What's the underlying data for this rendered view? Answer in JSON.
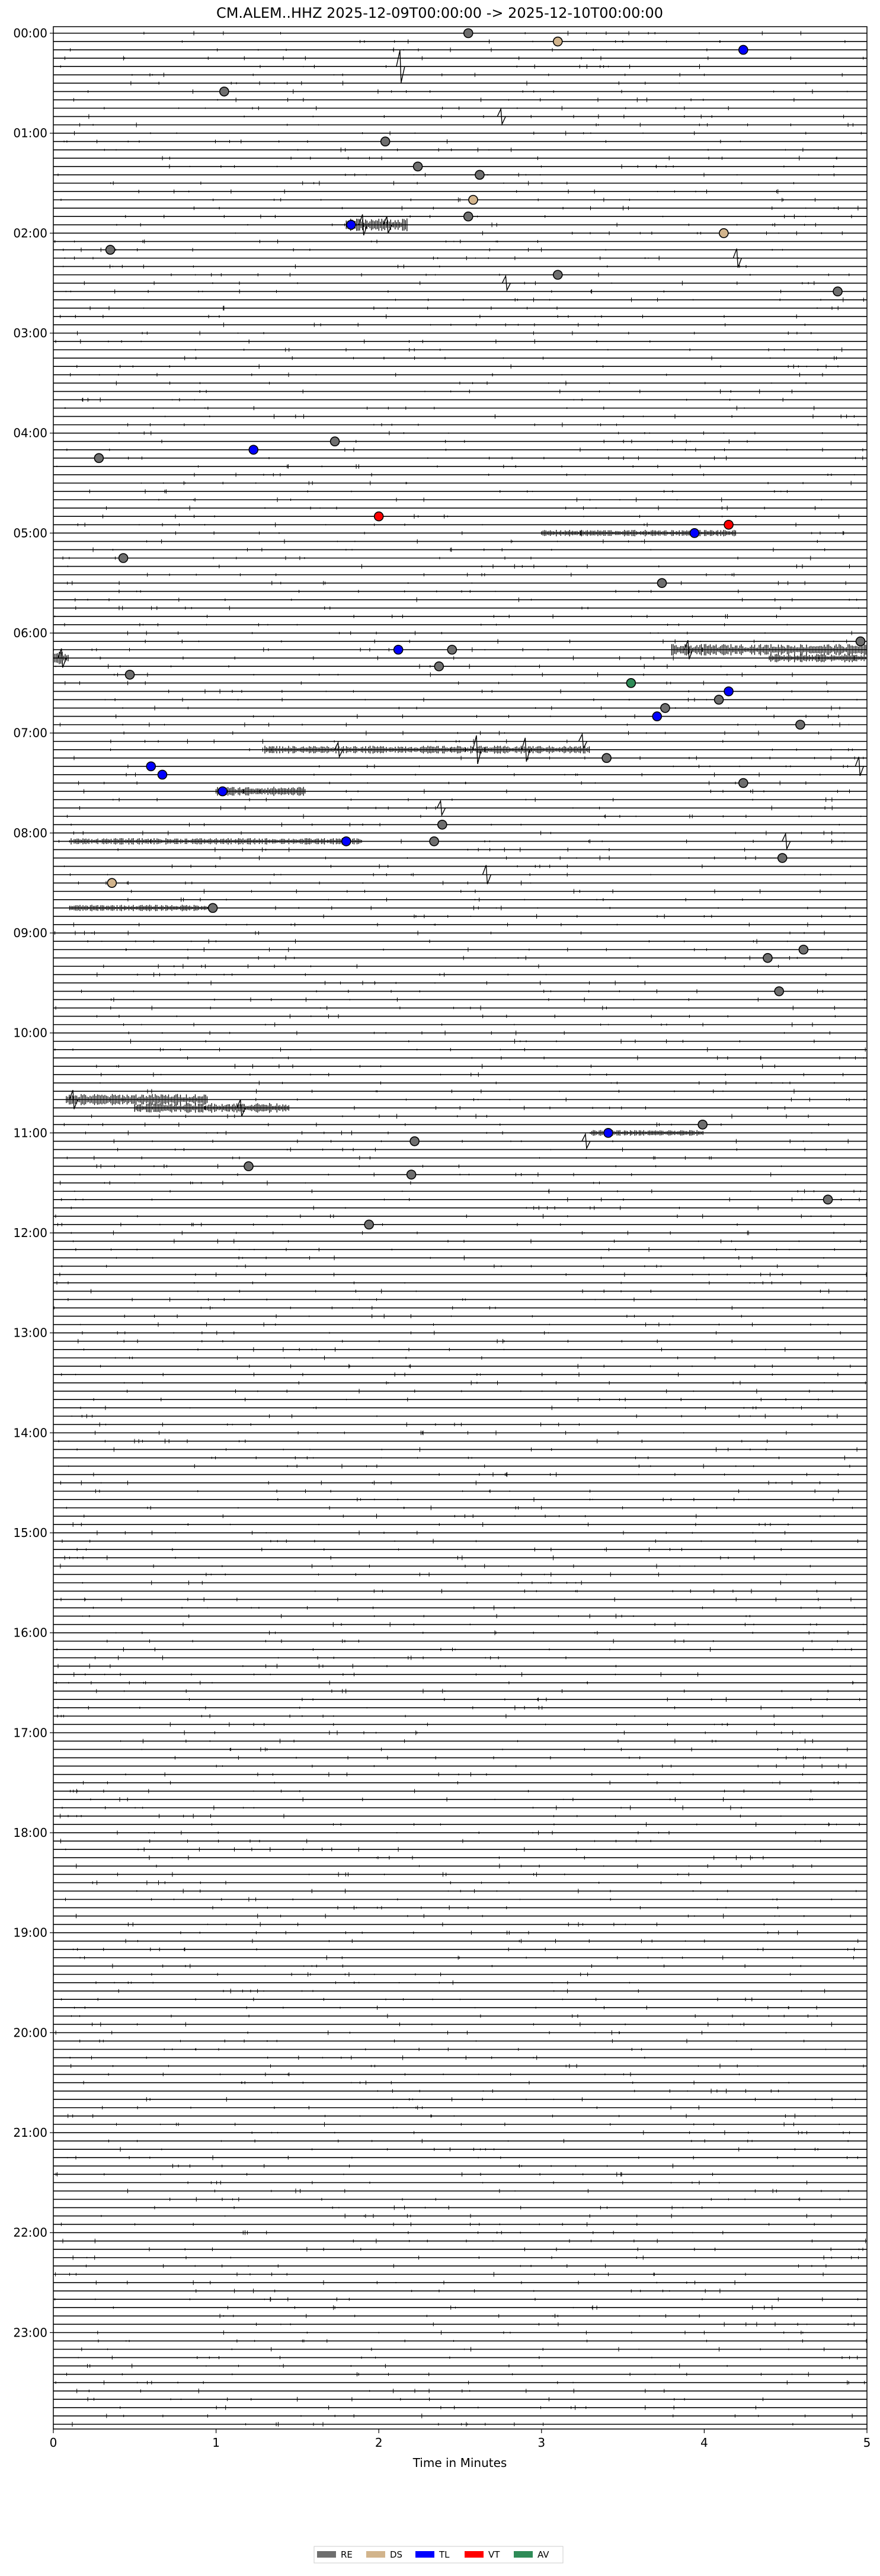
{
  "chart_data": {
    "type": "scatter",
    "title": "CM.ALEM..HHZ  2025-12-09T00:00:00 -> 2025-12-10T00:00:00",
    "xlabel": "Time in Minutes",
    "ylabel": "",
    "xlim": [
      0,
      5
    ],
    "xticks": [
      0,
      1,
      2,
      3,
      4,
      5
    ],
    "hours": [
      "00:00",
      "01:00",
      "02:00",
      "03:00",
      "04:00",
      "05:00",
      "06:00",
      "07:00",
      "08:00",
      "09:00",
      "10:00",
      "11:00",
      "12:00",
      "13:00",
      "14:00",
      "15:00",
      "16:00",
      "17:00",
      "18:00",
      "19:00",
      "20:00",
      "21:00",
      "22:00",
      "23:00"
    ],
    "rows_per_hour": 12,
    "legend_position": "bottom-center",
    "categories": [
      {
        "code": "RE",
        "color": "#6e6e6e"
      },
      {
        "code": "DS",
        "color": "#d2b48c"
      },
      {
        "code": "TL",
        "color": "#0000ff"
      },
      {
        "code": "VT",
        "color": "#ff0000"
      },
      {
        "code": "AV",
        "color": "#2e8b57"
      }
    ],
    "events": [
      {
        "row": 0,
        "x": 2.55,
        "cat": "RE"
      },
      {
        "row": 1,
        "x": 3.1,
        "cat": "DS"
      },
      {
        "row": 2,
        "x": 4.24,
        "cat": "TL"
      },
      {
        "row": 7,
        "x": 1.05,
        "cat": "RE"
      },
      {
        "row": 13,
        "x": 2.04,
        "cat": "RE"
      },
      {
        "row": 16,
        "x": 2.24,
        "cat": "RE"
      },
      {
        "row": 17,
        "x": 2.62,
        "cat": "RE"
      },
      {
        "row": 20,
        "x": 2.58,
        "cat": "DS"
      },
      {
        "row": 22,
        "x": 2.55,
        "cat": "RE"
      },
      {
        "row": 23,
        "x": 1.83,
        "cat": "TL"
      },
      {
        "row": 24,
        "x": 4.12,
        "cat": "DS"
      },
      {
        "row": 26,
        "x": 0.35,
        "cat": "RE"
      },
      {
        "row": 29,
        "x": 3.1,
        "cat": "RE"
      },
      {
        "row": 31,
        "x": 4.82,
        "cat": "RE"
      },
      {
        "row": 49,
        "x": 1.73,
        "cat": "RE"
      },
      {
        "row": 50,
        "x": 1.23,
        "cat": "TL"
      },
      {
        "row": 51,
        "x": 0.28,
        "cat": "RE"
      },
      {
        "row": 58,
        "x": 2.0,
        "cat": "VT"
      },
      {
        "row": 59,
        "x": 4.15,
        "cat": "VT"
      },
      {
        "row": 60,
        "x": 3.94,
        "cat": "TL"
      },
      {
        "row": 63,
        "x": 0.43,
        "cat": "RE"
      },
      {
        "row": 66,
        "x": 3.74,
        "cat": "RE"
      },
      {
        "row": 73,
        "x": 4.96,
        "cat": "RE"
      },
      {
        "row": 74,
        "x": 2.45,
        "cat": "RE"
      },
      {
        "row": 74,
        "x": 2.12,
        "cat": "TL"
      },
      {
        "row": 76,
        "x": 2.37,
        "cat": "RE"
      },
      {
        "row": 77,
        "x": 0.47,
        "cat": "RE"
      },
      {
        "row": 78,
        "x": 3.55,
        "cat": "AV"
      },
      {
        "row": 79,
        "x": 4.15,
        "cat": "TL"
      },
      {
        "row": 80,
        "x": 4.09,
        "cat": "RE"
      },
      {
        "row": 81,
        "x": 3.76,
        "cat": "RE"
      },
      {
        "row": 82,
        "x": 3.71,
        "cat": "TL"
      },
      {
        "row": 83,
        "x": 4.59,
        "cat": "RE"
      },
      {
        "row": 87,
        "x": 3.4,
        "cat": "RE"
      },
      {
        "row": 88,
        "x": 0.6,
        "cat": "TL"
      },
      {
        "row": 89,
        "x": 0.67,
        "cat": "TL"
      },
      {
        "row": 90,
        "x": 4.24,
        "cat": "RE"
      },
      {
        "row": 91,
        "x": 1.04,
        "cat": "TL"
      },
      {
        "row": 95,
        "x": 2.39,
        "cat": "RE"
      },
      {
        "row": 97,
        "x": 1.8,
        "cat": "TL"
      },
      {
        "row": 97,
        "x": 2.34,
        "cat": "RE"
      },
      {
        "row": 99,
        "x": 4.48,
        "cat": "RE"
      },
      {
        "row": 102,
        "x": 0.36,
        "cat": "DS"
      },
      {
        "row": 105,
        "x": 0.98,
        "cat": "RE"
      },
      {
        "row": 110,
        "x": 4.61,
        "cat": "RE"
      },
      {
        "row": 111,
        "x": 4.39,
        "cat": "RE"
      },
      {
        "row": 115,
        "x": 4.46,
        "cat": "RE"
      },
      {
        "row": 131,
        "x": 3.99,
        "cat": "RE"
      },
      {
        "row": 132,
        "x": 3.41,
        "cat": "TL"
      },
      {
        "row": 133,
        "x": 2.22,
        "cat": "RE"
      },
      {
        "row": 136,
        "x": 1.2,
        "cat": "RE"
      },
      {
        "row": 137,
        "x": 2.2,
        "cat": "RE"
      },
      {
        "row": 140,
        "x": 4.76,
        "cat": "RE"
      },
      {
        "row": 143,
        "x": 1.94,
        "cat": "RE"
      }
    ],
    "bursts": [
      {
        "row": 4,
        "x": 2.13,
        "amp": 3.4
      },
      {
        "row": 10,
        "x": 2.75,
        "amp": 1.6
      },
      {
        "row": 23,
        "x": 1.9,
        "amp": 2.2
      },
      {
        "row": 23,
        "x": 2.05,
        "amp": 1.8
      },
      {
        "row": 27,
        "x": 4.2,
        "amp": 2.0
      },
      {
        "row": 30,
        "x": 2.78,
        "amp": 1.5
      },
      {
        "row": 74,
        "x": 3.9,
        "amp": 2.0
      },
      {
        "row": 75,
        "x": 0.05,
        "amp": 2.0
      },
      {
        "row": 85,
        "x": 3.25,
        "amp": 1.5
      },
      {
        "row": 86,
        "x": 1.75,
        "amp": 1.5
      },
      {
        "row": 86,
        "x": 2.6,
        "amp": 3.0
      },
      {
        "row": 86,
        "x": 2.9,
        "amp": 2.5
      },
      {
        "row": 88,
        "x": 4.95,
        "amp": 2.0
      },
      {
        "row": 93,
        "x": 2.38,
        "amp": 1.5
      },
      {
        "row": 97,
        "x": 4.5,
        "amp": 1.6
      },
      {
        "row": 101,
        "x": 2.66,
        "amp": 2.0
      },
      {
        "row": 128,
        "x": 0.12,
        "amp": 2.0
      },
      {
        "row": 129,
        "x": 1.15,
        "amp": 1.8
      },
      {
        "row": 133,
        "x": 3.27,
        "amp": 1.5
      }
    ],
    "bands": [
      {
        "row": 23,
        "x0": 1.8,
        "x1": 2.18,
        "amp": 1.8
      },
      {
        "row": 60,
        "x0": 3.0,
        "x1": 4.2,
        "amp": 0.9
      },
      {
        "row": 74,
        "x0": 3.8,
        "x1": 5.0,
        "amp": 1.6
      },
      {
        "row": 75,
        "x0": 0.0,
        "x1": 0.1,
        "amp": 1.8
      },
      {
        "row": 75,
        "x0": 4.4,
        "x1": 5.0,
        "amp": 1.2
      },
      {
        "row": 86,
        "x0": 1.3,
        "x1": 3.3,
        "amp": 1.1
      },
      {
        "row": 91,
        "x0": 1.0,
        "x1": 1.55,
        "amp": 1.3
      },
      {
        "row": 97,
        "x0": 0.1,
        "x1": 1.9,
        "amp": 0.9
      },
      {
        "row": 105,
        "x0": 0.1,
        "x1": 0.95,
        "amp": 0.9
      },
      {
        "row": 128,
        "x0": 0.08,
        "x1": 0.95,
        "amp": 1.6
      },
      {
        "row": 129,
        "x0": 0.5,
        "x1": 1.45,
        "amp": 1.4
      },
      {
        "row": 132,
        "x0": 3.3,
        "x1": 4.0,
        "amp": 0.8
      }
    ]
  }
}
